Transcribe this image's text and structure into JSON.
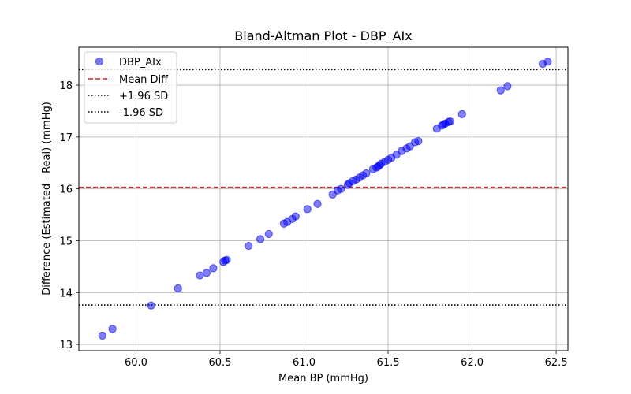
{
  "chart_data": {
    "type": "scatter",
    "title": "Bland-Altman Plot - DBP_AIx",
    "xlabel": "Mean BP (mmHg)",
    "ylabel": "Difference (Estimated - Real) (mmHg)",
    "xlim": [
      59.66,
      62.57
    ],
    "ylim": [
      12.88,
      18.73
    ],
    "xticks": [
      "60.0",
      "60.5",
      "61.0",
      "61.5",
      "62.0",
      "62.5"
    ],
    "xtick_values": [
      60.0,
      60.5,
      61.0,
      61.5,
      62.0,
      62.5
    ],
    "yticks": [
      "13",
      "14",
      "15",
      "16",
      "17",
      "18"
    ],
    "ytick_values": [
      13,
      14,
      15,
      16,
      17,
      18
    ],
    "grid": true,
    "legend_position": "top-left",
    "colors": {
      "points": "#0000ff",
      "mean": "#d62728",
      "limits": "#000000",
      "grid": "#b0b0b0"
    },
    "series": [
      {
        "name": "DBP_AIx",
        "x": [
          59.8,
          59.86,
          60.09,
          60.25,
          60.38,
          60.42,
          60.46,
          60.52,
          60.53,
          60.54,
          60.67,
          60.74,
          60.79,
          60.88,
          60.9,
          60.93,
          60.95,
          61.02,
          61.08,
          61.17,
          61.2,
          61.22,
          61.26,
          61.27,
          61.29,
          61.31,
          61.33,
          61.35,
          61.37,
          61.41,
          61.43,
          61.44,
          61.45,
          61.46,
          61.48,
          61.5,
          61.52,
          61.55,
          61.58,
          61.61,
          61.63,
          61.66,
          61.68,
          61.79,
          61.82,
          61.83,
          61.84,
          61.86,
          61.87,
          61.94,
          62.17,
          62.21,
          62.42,
          62.45
        ],
        "y": [
          13.17,
          13.3,
          13.75,
          14.08,
          14.33,
          14.38,
          14.47,
          14.59,
          14.62,
          14.63,
          14.9,
          15.03,
          15.13,
          15.33,
          15.36,
          15.42,
          15.47,
          15.61,
          15.71,
          15.89,
          15.97,
          16.0,
          16.08,
          16.11,
          16.15,
          16.18,
          16.22,
          16.26,
          16.3,
          16.38,
          16.41,
          16.43,
          16.46,
          16.49,
          16.52,
          16.56,
          16.6,
          16.66,
          16.73,
          16.78,
          16.82,
          16.9,
          16.92,
          17.16,
          17.22,
          17.24,
          17.26,
          17.29,
          17.3,
          17.44,
          17.9,
          17.98,
          18.41,
          18.45
        ]
      }
    ],
    "reference_lines": [
      {
        "name": "Mean Diff",
        "y": 16.03,
        "style": "dashed"
      },
      {
        "name": "+1.96 SD",
        "y": 18.3,
        "style": "dotted"
      },
      {
        "name": "-1.96 SD",
        "y": 13.76,
        "style": "dotted"
      }
    ]
  }
}
